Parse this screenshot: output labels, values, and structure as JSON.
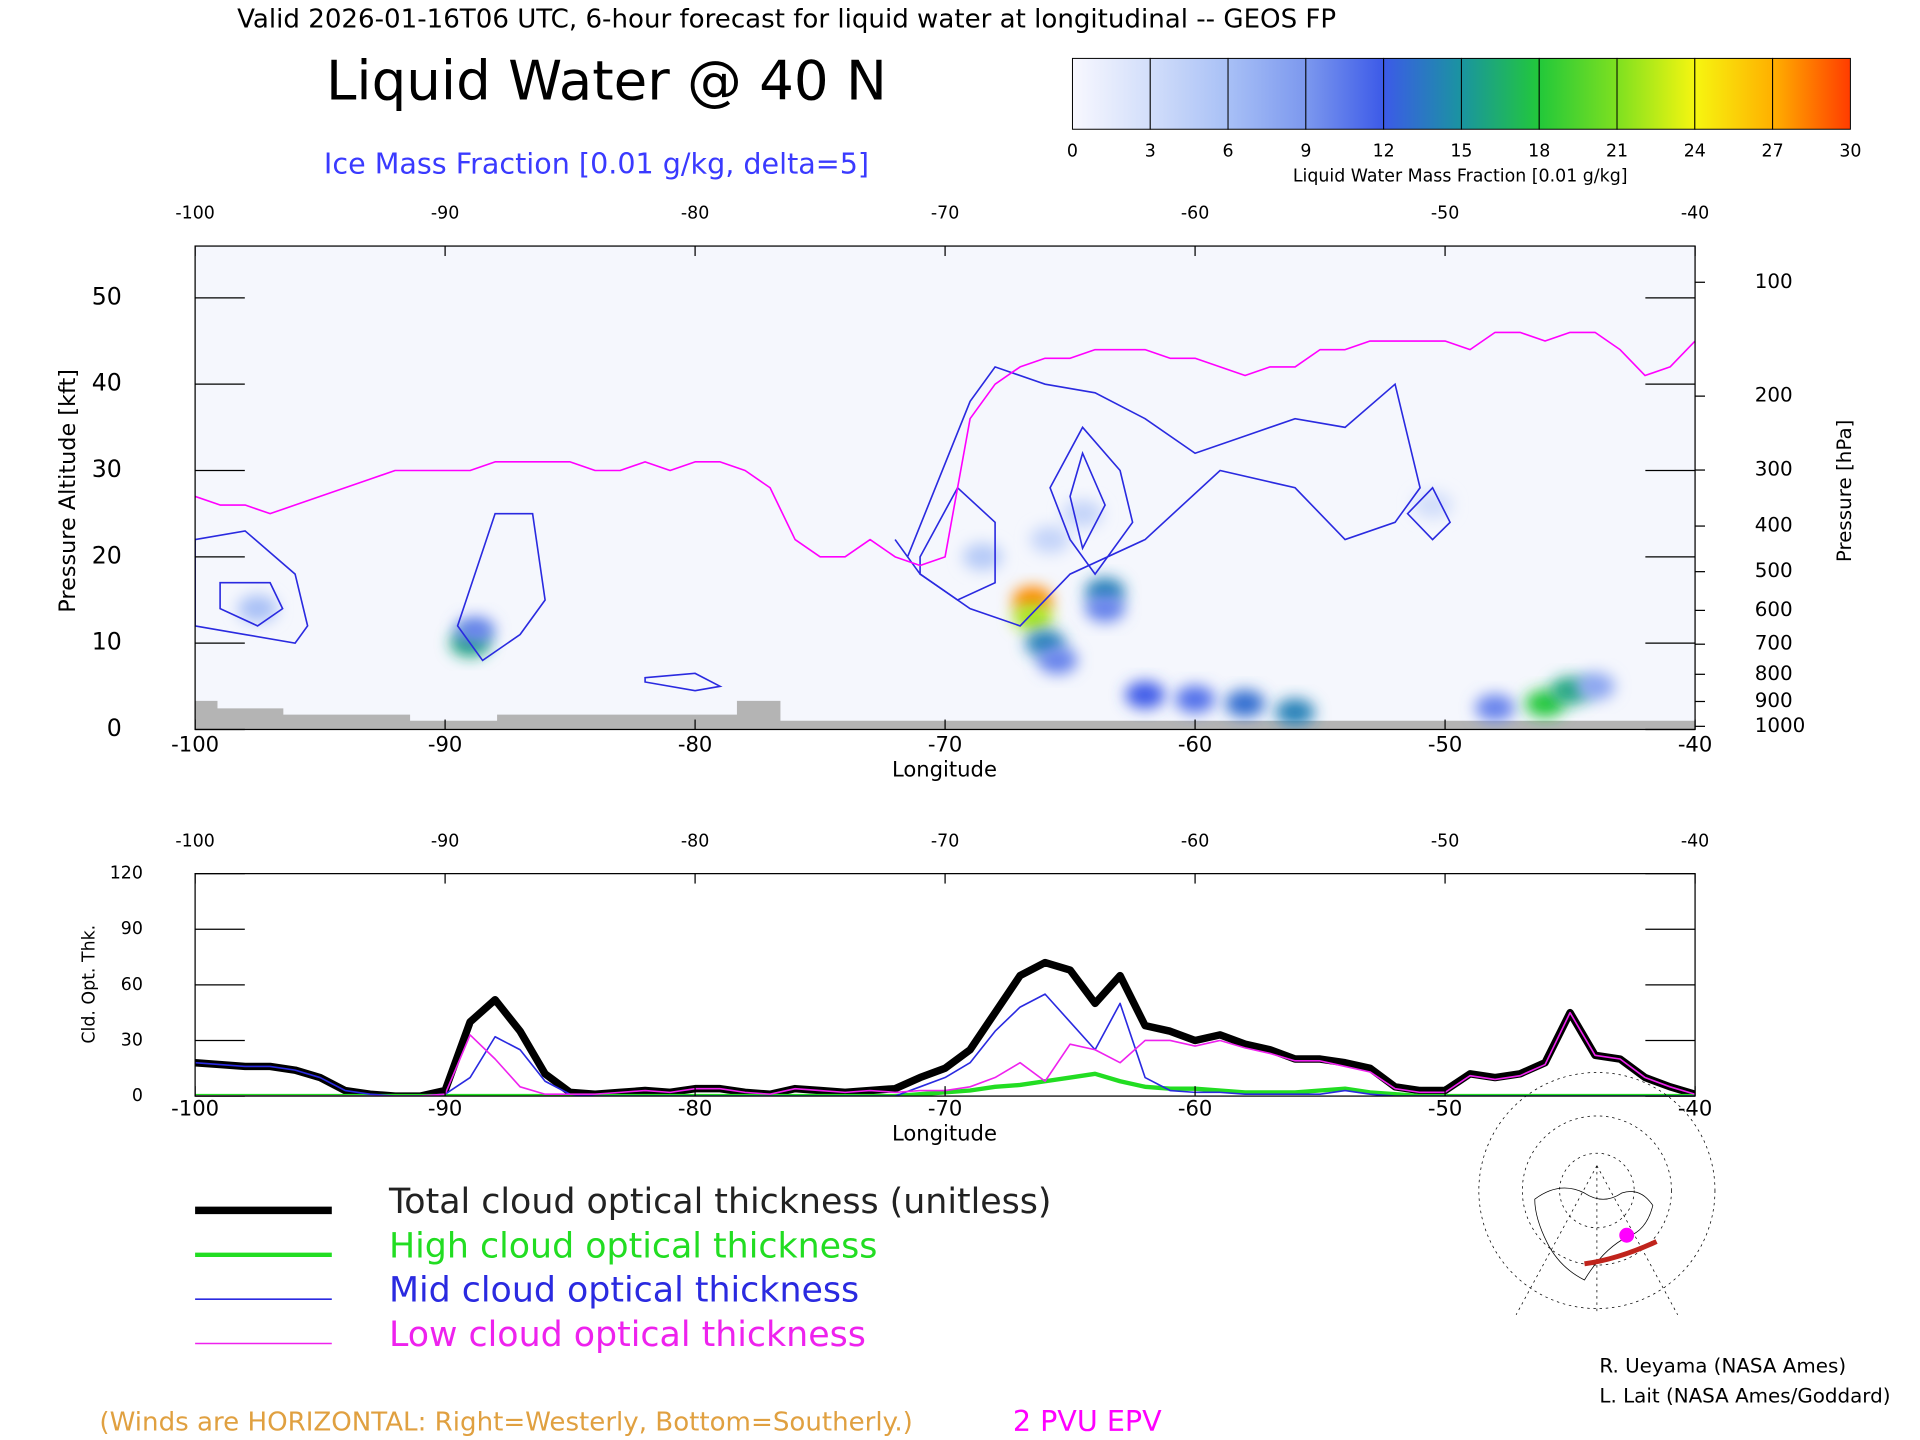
{
  "header": {
    "valid": "Valid 2026-01-16T06 UTC, 6-hour forecast for liquid water at longitudinal -- GEOS FP",
    "note": "(Winds are HORIZONTAL: Right=Westerly, Bottom=Southerly.)",
    "credits": [
      "R. Ueyama (NASA Ames)",
      "L. Lait (NASA Ames/Goddard)"
    ]
  },
  "chart_data": [
    {
      "type": "section",
      "title": "Liquid Water @ 40 N",
      "subtitle": "Ice Mass Fraction [0.01 g/kg, delta=5]",
      "xlabel": "Longitude",
      "ylabel": "Pressure Altitude [kft]",
      "y2label": "Pressure [hPa]",
      "xlim": [
        -100,
        -40
      ],
      "xticks": [
        -100,
        -90,
        -80,
        -70,
        -60,
        -50,
        -40
      ],
      "ylim": [
        0,
        56
      ],
      "yticks": [
        0,
        10,
        20,
        30,
        40,
        50
      ],
      "y2ticks": [
        100,
        200,
        300,
        400,
        500,
        600,
        700,
        800,
        900,
        1000
      ],
      "colorbar": {
        "label": "Liquid Water Mass Fraction [0.01 g/kg]",
        "lim": [
          0,
          30
        ],
        "ticks": [
          0,
          3,
          6,
          9,
          12,
          15,
          18,
          21,
          24,
          27,
          30
        ],
        "colors": [
          "#f8f8ff",
          "#d2defa",
          "#a8c0f6",
          "#7c98ee",
          "#3c5ae8",
          "#1a94a0",
          "#22c83a",
          "#7ee020",
          "#f6f610",
          "#ffb000",
          "#ff3c00"
        ]
      },
      "cells": {
        "x": [
          -89,
          -88.8,
          -66.5,
          -66.5,
          -66,
          -65.5,
          -63.6,
          -63.6,
          -62,
          -60,
          -58,
          -56,
          -48,
          -46,
          -45,
          -44,
          -97.5,
          -68.5,
          -64.5,
          -50.5,
          -65.8
        ],
        "y": [
          10,
          11.5,
          15,
          13,
          10,
          8,
          16,
          14,
          4,
          3.5,
          3,
          2,
          2.5,
          3,
          4.5,
          5,
          14,
          20,
          25,
          26,
          22
        ],
        "values": [
          16,
          10,
          28,
          22,
          14,
          10,
          14,
          10,
          12,
          11,
          13,
          14,
          10,
          18,
          16,
          8,
          6,
          5,
          4,
          3,
          4
        ]
      },
      "ice_contours": {
        "color": "#2a2ae0",
        "lines": [
          {
            "x": [
              -100,
              -98,
              -96,
              -95.5,
              -96,
              -98,
              -100
            ],
            "y": [
              22,
              23,
              18,
              12,
              10,
              11,
              12
            ]
          },
          {
            "x": [
              -99,
              -97,
              -96.5,
              -97.5,
              -99
            ],
            "y": [
              17,
              17,
              14,
              12,
              14
            ]
          },
          {
            "x": [
              -89.5,
              -88,
              -86.5,
              -86,
              -87,
              -88.5,
              -89.5
            ],
            "y": [
              12,
              25,
              25,
              15,
              11,
              8,
              12
            ]
          },
          {
            "x": [
              -71.5,
              -69,
              -68,
              -66,
              -64,
              -62,
              -60,
              -58,
              -56,
              -54,
              -52,
              -51,
              -52,
              -54,
              -56,
              -59,
              -62,
              -65,
              -67,
              -69,
              -71,
              -72
            ],
            "y": [
              20,
              38,
              42,
              40,
              39,
              36,
              32,
              34,
              36,
              35,
              40,
              28,
              24,
              22,
              28,
              30,
              22,
              18,
              12,
              14,
              18,
              22
            ]
          },
          {
            "x": [
              -71,
              -69.5,
              -68,
              -68,
              -69.5,
              -71
            ],
            "y": [
              20,
              28,
              24,
              17,
              15,
              18
            ]
          },
          {
            "x": [
              -65.8,
              -64.5,
              -63,
              -62.5,
              -64,
              -65
            ],
            "y": [
              28,
              35,
              30,
              24,
              18,
              22
            ]
          },
          {
            "x": [
              -65,
              -64.5,
              -63.6,
              -64.5
            ],
            "y": [
              27,
              32,
              26,
              21
            ]
          },
          {
            "x": [
              -51.5,
              -50.5,
              -49.8,
              -50.5
            ],
            "y": [
              25,
              28,
              24,
              22
            ]
          },
          {
            "x": [
              -82,
              -80,
              -79,
              -80,
              -82
            ],
            "y": [
              6,
              6.5,
              5,
              4.5,
              5.5
            ]
          }
        ]
      },
      "x": [
        -100,
        -99,
        -98,
        -97,
        -96,
        -95,
        -94,
        -93,
        -92,
        -91,
        -90,
        -89,
        -88,
        -87,
        -86,
        -85,
        -84,
        -83,
        -82,
        -81,
        -80,
        -79,
        -78,
        -77,
        -76,
        -75,
        -74,
        -73,
        -72,
        -71,
        -70,
        -69,
        -68,
        -67,
        -66,
        -65,
        -64,
        -63,
        -62,
        -61,
        -60,
        -59,
        -58,
        -57,
        -56,
        -55,
        -54,
        -53,
        -52,
        -51,
        -50,
        -49,
        -48,
        -47,
        -46,
        -45,
        -44,
        -43,
        -42,
        -41,
        -40
      ],
      "series": [
        {
          "name": "2 PVU EPV",
          "color": "#ff00ff",
          "values": [
            27,
            26,
            26,
            25,
            26,
            27,
            28,
            29,
            30,
            30,
            30,
            30,
            31,
            31,
            31,
            31,
            30,
            30,
            31,
            30,
            31,
            31,
            30,
            28,
            22,
            20,
            20,
            22,
            20,
            19,
            20,
            36,
            40,
            42,
            43,
            43,
            44,
            44,
            44,
            43,
            43,
            42,
            41,
            42,
            42,
            44,
            44,
            45,
            45,
            45,
            45,
            44,
            46,
            46,
            45,
            46,
            46,
            44,
            41,
            42,
            45
          ]
        }
      ]
    },
    {
      "type": "line",
      "xlabel": "Longitude",
      "ylabel": "Cld. Opt. Thk.",
      "xlim": [
        -100,
        -40
      ],
      "xticks": [
        -100,
        -90,
        -80,
        -70,
        -60,
        -50,
        -40
      ],
      "ylim": [
        0,
        120
      ],
      "yticks": [
        0,
        30,
        60,
        90,
        120
      ],
      "x": [
        -100,
        -99,
        -98,
        -97,
        -96,
        -95,
        -94,
        -93,
        -92,
        -91,
        -90,
        -89,
        -88,
        -87,
        -86,
        -85,
        -84,
        -83,
        -82,
        -81,
        -80,
        -79,
        -78,
        -77,
        -76,
        -75,
        -74,
        -73,
        -72,
        -71,
        -70,
        -69,
        -68,
        -67,
        -66,
        -65,
        -64,
        -63,
        -62,
        -61,
        -60,
        -59,
        -58,
        -57,
        -56,
        -55,
        -54,
        -53,
        -52,
        -51,
        -50,
        -49,
        -48,
        -47,
        -46,
        -45,
        -44,
        -43,
        -42,
        -41,
        -40
      ],
      "series": [
        {
          "name": "Total cloud optical thickness (unitless)",
          "color": "#000000",
          "width": 6,
          "values": [
            18,
            17,
            16,
            16,
            14,
            10,
            3,
            1,
            0,
            0,
            3,
            40,
            52,
            35,
            12,
            2,
            1,
            2,
            3,
            2,
            4,
            4,
            2,
            1,
            4,
            3,
            2,
            3,
            4,
            10,
            15,
            25,
            45,
            65,
            72,
            68,
            50,
            65,
            38,
            35,
            30,
            33,
            28,
            25,
            20,
            20,
            18,
            15,
            5,
            3,
            3,
            12,
            10,
            12,
            18,
            45,
            22,
            20,
            10,
            5,
            1
          ]
        },
        {
          "name": "High cloud optical thickness",
          "color": "#22dd22",
          "width": 3.5,
          "values": [
            0,
            0,
            0,
            0,
            0,
            0,
            0,
            0,
            0,
            0,
            0,
            0,
            0,
            0,
            0,
            0,
            0,
            0,
            0,
            0,
            0,
            0,
            0,
            0,
            0,
            0,
            0,
            0,
            0,
            1,
            2,
            3,
            5,
            6,
            8,
            10,
            12,
            8,
            5,
            4,
            4,
            3,
            2,
            2,
            2,
            3,
            4,
            2,
            1,
            0,
            0,
            0,
            0,
            0,
            0,
            0,
            0,
            0,
            0,
            0,
            0
          ]
        },
        {
          "name": "Mid cloud optical thickness",
          "color": "#2a2ae0",
          "width": 1.3,
          "values": [
            18,
            17,
            16,
            16,
            14,
            10,
            3,
            1,
            0,
            0,
            1,
            10,
            32,
            25,
            8,
            1,
            0,
            0,
            0,
            0,
            0,
            0,
            0,
            0,
            0,
            0,
            0,
            0,
            0,
            5,
            10,
            18,
            35,
            48,
            55,
            40,
            25,
            50,
            10,
            3,
            2,
            2,
            1,
            1,
            1,
            1,
            3,
            1,
            0,
            0,
            0,
            0,
            0,
            0,
            0,
            0,
            0,
            0,
            0,
            0,
            0
          ]
        },
        {
          "name": "Low cloud optical thickness",
          "color": "#ee22ee",
          "width": 1.3,
          "values": [
            0,
            0,
            0,
            0,
            0,
            0,
            0,
            0,
            0,
            0,
            1,
            33,
            20,
            5,
            1,
            1,
            1,
            2,
            3,
            2,
            4,
            4,
            2,
            1,
            4,
            3,
            2,
            3,
            2,
            3,
            3,
            5,
            10,
            18,
            8,
            28,
            25,
            18,
            30,
            30,
            27,
            30,
            26,
            23,
            19,
            19,
            16,
            13,
            4,
            2,
            2,
            11,
            9,
            11,
            17,
            45,
            22,
            20,
            10,
            5,
            1
          ]
        }
      ]
    }
  ]
}
